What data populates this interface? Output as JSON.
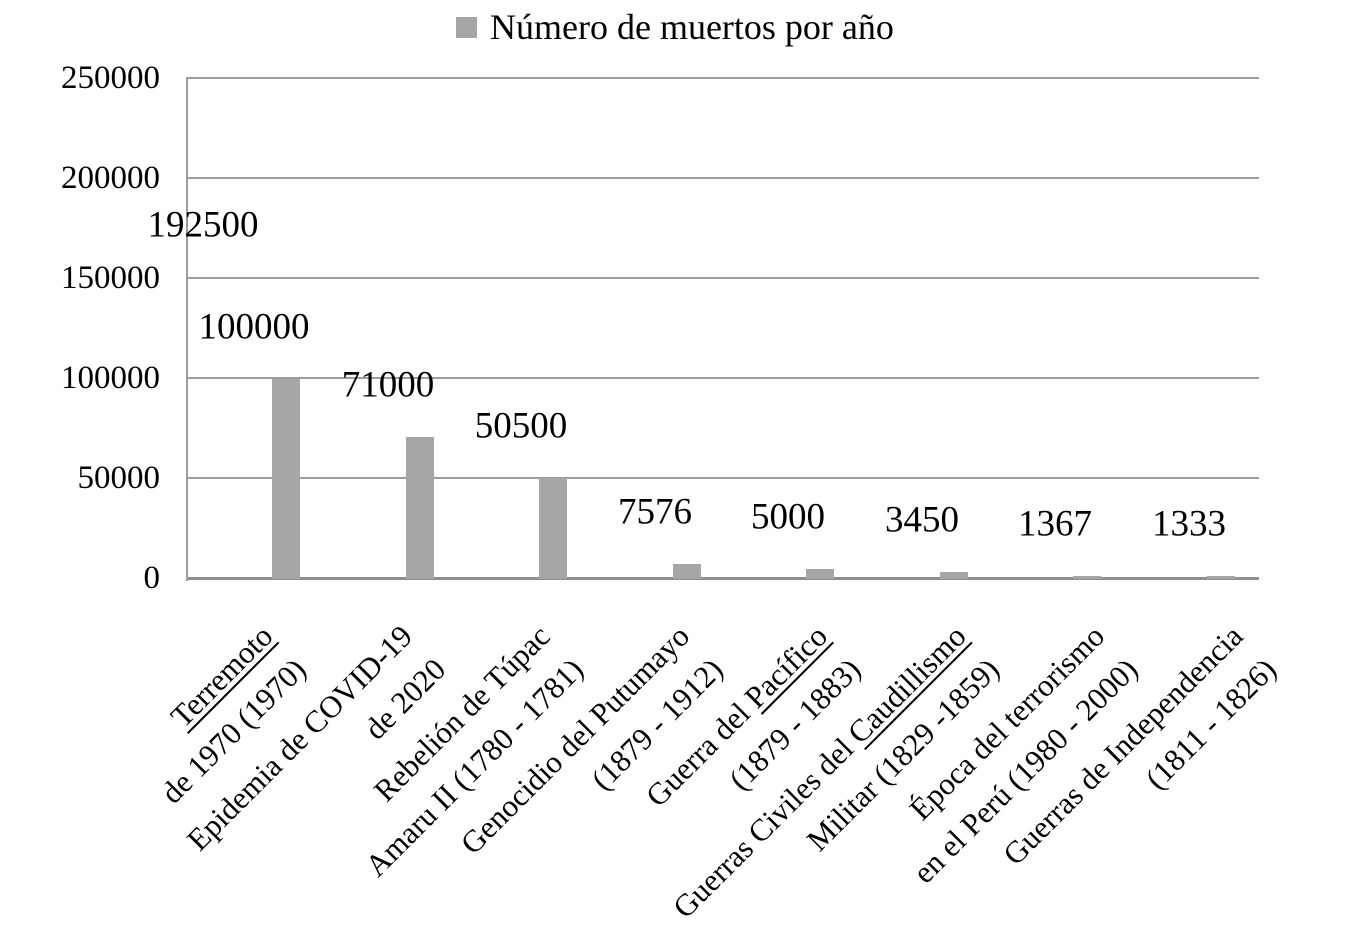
{
  "chart_data": {
    "type": "bar",
    "title": "Número de muertos por año",
    "legend": {
      "position": "top",
      "entries": [
        {
          "label": "Número de muertos por año",
          "color": "#a6a6a6"
        }
      ]
    },
    "series": [
      {
        "name": "Número de muertos por año",
        "values": [
          100000,
          71000,
          50500,
          7576,
          5000,
          3450,
          1367,
          1333
        ]
      }
    ],
    "data_labels": [
      "100000",
      "71000",
      "50500",
      "7576",
      "5000",
      "3450",
      "1367",
      "1333"
    ],
    "annotations": [
      {
        "text": "192500"
      }
    ],
    "categories": [
      {
        "lines": [
          [
            {
              "text": "Terremoto",
              "underline": true
            }
          ],
          [
            {
              "text": "de 1970 (1970)",
              "underline": false
            }
          ]
        ]
      },
      {
        "lines": [
          [
            {
              "text": "Epidemia de COVID-19",
              "underline": false
            }
          ],
          [
            {
              "text": "de 2020",
              "underline": false
            }
          ]
        ]
      },
      {
        "lines": [
          [
            {
              "text": "Rebelión de Túpac",
              "underline": false
            }
          ],
          [
            {
              "text": "Amaru II (1780 - 1781)",
              "underline": false
            }
          ]
        ]
      },
      {
        "lines": [
          [
            {
              "text": "Genocidio del Putumayo",
              "underline": false
            }
          ],
          [
            {
              "text": "(1879 - 1912)",
              "underline": false
            }
          ]
        ]
      },
      {
        "lines": [
          [
            {
              "text": "Guerra del ",
              "underline": false
            },
            {
              "text": "Pacífico",
              "underline": true
            }
          ],
          [
            {
              "text": "(1879 - 1883)",
              "underline": false
            }
          ]
        ]
      },
      {
        "lines": [
          [
            {
              "text": "Guerras Civiles del ",
              "underline": false
            },
            {
              "text": "Caudillismo",
              "underline": true
            }
          ],
          [
            {
              "text": "Militar (1829 -1859)",
              "underline": false
            }
          ]
        ]
      },
      {
        "lines": [
          [
            {
              "text": "Época del terrorismo",
              "underline": false
            }
          ],
          [
            {
              "text": "en el Perú (1980 - 2000)",
              "underline": false
            }
          ]
        ]
      },
      {
        "lines": [
          [
            {
              "text": "Guerras de Independencia",
              "underline": false
            }
          ],
          [
            {
              "text": "(1811 - 1826)",
              "underline": false
            }
          ]
        ]
      }
    ],
    "y_axis": {
      "min": 0,
      "max": 250000,
      "tick_interval": 50000,
      "ticks": [
        250000,
        200000,
        150000,
        100000,
        50000,
        0
      ],
      "tick_labels": [
        "250000",
        "200000",
        "150000",
        "100000",
        "50000",
        "0"
      ]
    },
    "x_axis": {
      "label_rotation_deg": 45
    },
    "grid": true,
    "colors": {
      "bar": "#a6a6a6",
      "gridline": "#9c9c9c",
      "axis": "#9c9c9c",
      "bottom_axis": "#8f8f8f",
      "text": "#000000",
      "background": "#ffffff"
    }
  }
}
